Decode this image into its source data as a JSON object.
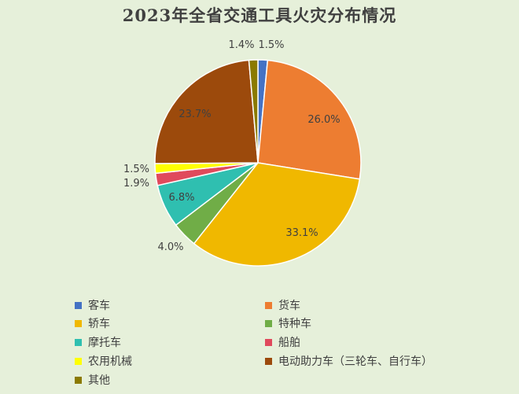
{
  "chart_data": {
    "type": "pie",
    "title": "2023年全省交通工具火灾分布情况",
    "legend_position": "bottom",
    "slices": [
      {
        "name": "客车",
        "value": 1.5,
        "label": "1.5%",
        "color": "#4472c4"
      },
      {
        "name": "货车",
        "value": 26.0,
        "label": "26.0%",
        "color": "#ed7d31"
      },
      {
        "name": "轿车",
        "value": 33.1,
        "label": "33.1%",
        "color": "#f0b800"
      },
      {
        "name": "特种车",
        "value": 4.0,
        "label": "4.0%",
        "color": "#70ad47"
      },
      {
        "name": "摩托车",
        "value": 6.8,
        "label": "6.8%",
        "color": "#2fbfb0"
      },
      {
        "name": "船舶",
        "value": 1.9,
        "label": "1.9%",
        "color": "#e04a5c"
      },
      {
        "name": "农用机械",
        "value": 1.5,
        "label": "1.5%",
        "color": "#ffff00"
      },
      {
        "name": "电动助力车（三轮车、自行车）",
        "value": 23.7,
        "label": "23.7%",
        "color": "#9c4a0c"
      },
      {
        "name": "其他",
        "value": 1.4,
        "label": "1.4%",
        "color": "#8b7a00"
      }
    ]
  }
}
